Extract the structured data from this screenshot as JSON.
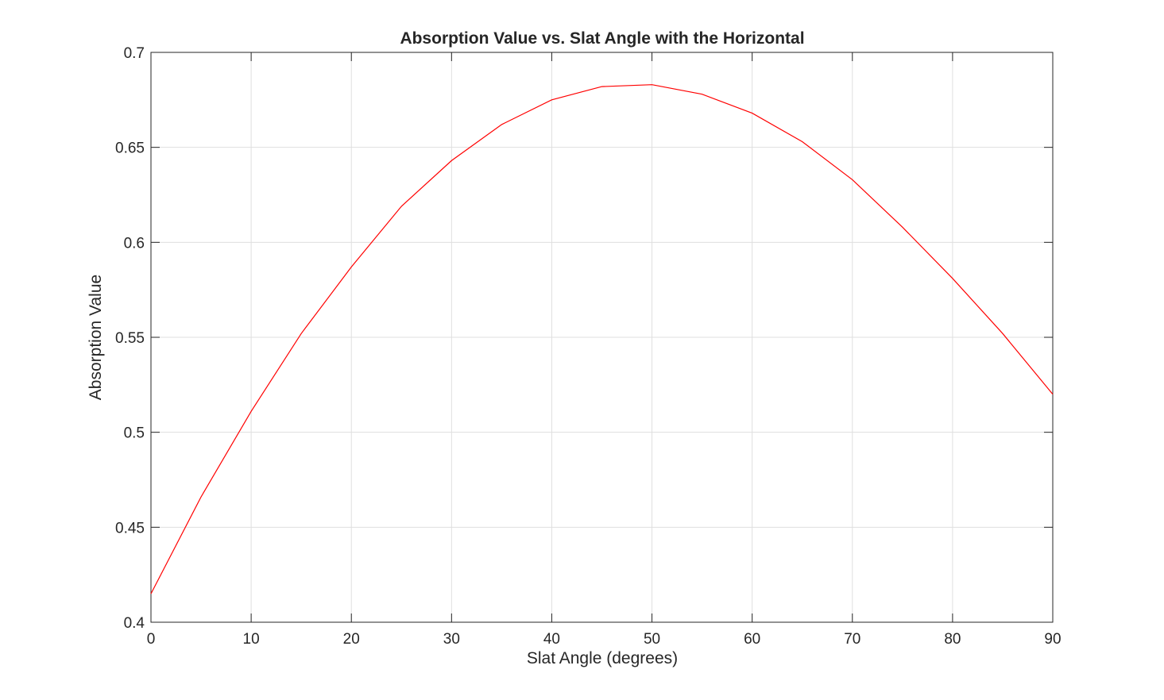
{
  "chart_data": {
    "type": "line",
    "title": "Absorption Value vs. Slat Angle with the Horizontal",
    "xlabel": "Slat Angle (degrees)",
    "ylabel": "Absorption Value",
    "xlim": [
      0,
      90
    ],
    "ylim": [
      0.4,
      0.7
    ],
    "xticks": [
      0,
      10,
      20,
      30,
      40,
      50,
      60,
      70,
      80,
      90
    ],
    "yticks": [
      0.4,
      0.45,
      0.5,
      0.55,
      0.6,
      0.65,
      0.7
    ],
    "ytick_labels": [
      "0.4",
      "0.45",
      "0.5",
      "0.55",
      "0.6",
      "0.65",
      "0.7"
    ],
    "grid": true,
    "legend": null,
    "series": [
      {
        "name": "Absorption Value",
        "color": "#ff0000",
        "x": [
          0,
          5,
          10,
          15,
          20,
          25,
          30,
          35,
          40,
          45,
          50,
          55,
          60,
          65,
          70,
          75,
          80,
          85,
          90
        ],
        "values": [
          0.415,
          0.466,
          0.511,
          0.552,
          0.587,
          0.619,
          0.643,
          0.662,
          0.675,
          0.682,
          0.683,
          0.678,
          0.668,
          0.653,
          0.633,
          0.608,
          0.581,
          0.552,
          0.52
        ]
      }
    ]
  },
  "colors": {
    "line": "#ff0000",
    "axis": "#262626",
    "grid": "#dfdfdf",
    "frame": "#808080"
  }
}
